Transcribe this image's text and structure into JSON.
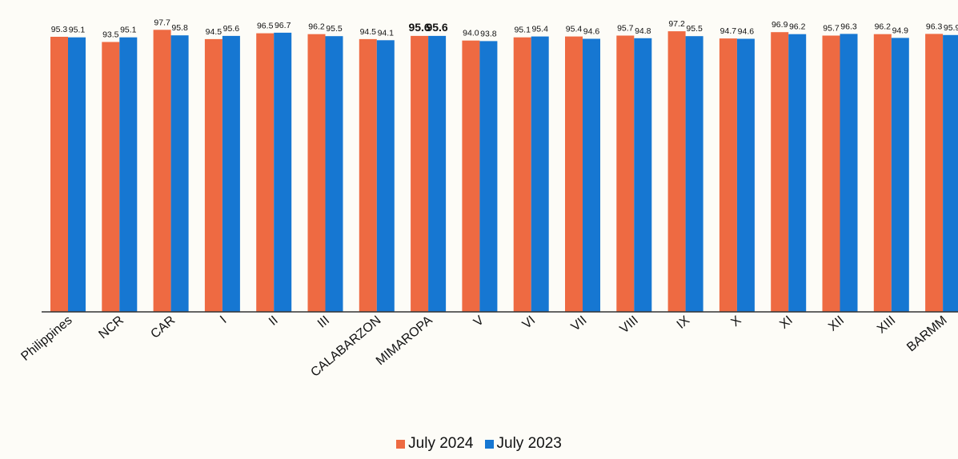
{
  "chart_data": {
    "type": "bar",
    "title": "",
    "xlabel": "",
    "ylabel": "",
    "ylim": [
      0,
      100
    ],
    "categories": [
      "Philippines",
      "NCR",
      "CAR",
      "I",
      "II",
      "III",
      "CALABARZON",
      "MIMAROPA",
      "V",
      "VI",
      "VII",
      "VIII",
      "IX",
      "X",
      "XI",
      "XII",
      "XIII",
      "BARMM"
    ],
    "series": [
      {
        "name": "July 2024",
        "color": "#ee6a42",
        "values": [
          95.3,
          93.5,
          97.7,
          94.5,
          96.5,
          96.2,
          94.5,
          95.6,
          94.0,
          95.1,
          95.4,
          95.7,
          97.2,
          94.7,
          96.9,
          95.7,
          96.2,
          96.3
        ],
        "labels": [
          "95.3",
          "93.5",
          "97.7",
          "94.5",
          "96.5",
          "96.2",
          "94.5",
          "95.6",
          "94.0",
          "95.1",
          "95.4",
          "95.7",
          "97.2",
          "94.7",
          "96.9",
          "95.7",
          "96.2",
          "96.3"
        ]
      },
      {
        "name": "July 2023",
        "color": "#1677d2",
        "values": [
          95.1,
          95.1,
          95.8,
          95.6,
          96.7,
          95.5,
          94.1,
          95.6,
          93.8,
          95.4,
          94.6,
          94.8,
          95.5,
          94.6,
          96.2,
          96.3,
          94.9,
          95.9
        ],
        "labels": [
          "95.1",
          "95.1",
          "95.8",
          "95.6",
          "96.7",
          "95.5",
          "94.1",
          "95.6",
          "93.8",
          "95.4",
          "94.6",
          "94.8",
          "95.5",
          "94.6",
          "96.2",
          "96.3",
          "94.9",
          "95.9"
        ]
      }
    ],
    "legend": "bottom-center",
    "grid": false
  }
}
